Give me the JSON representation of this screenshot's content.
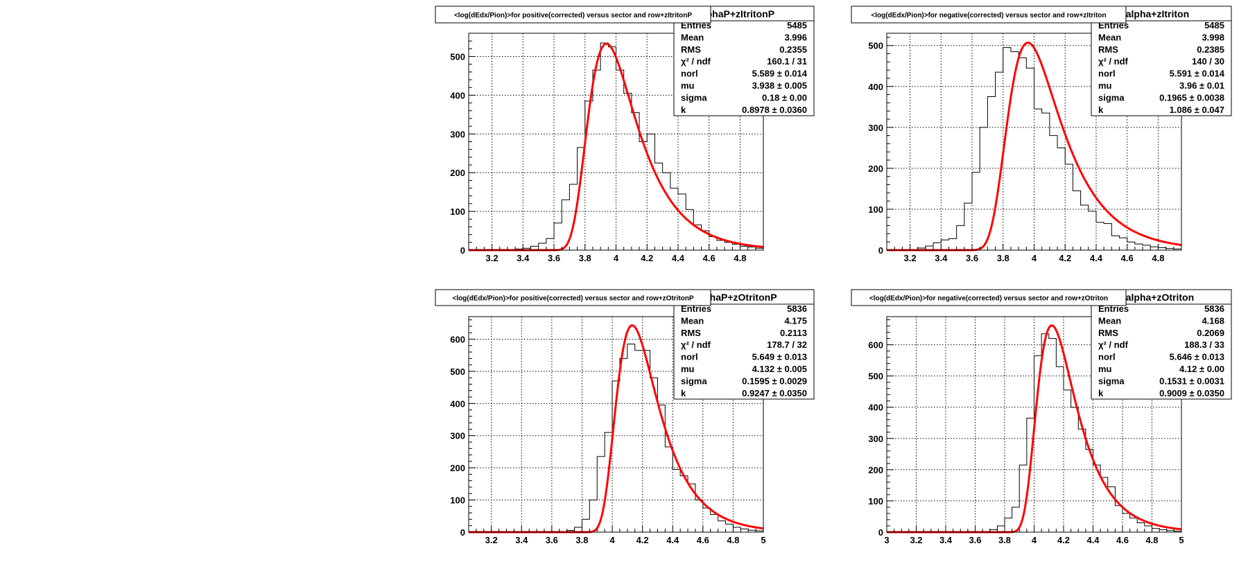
{
  "chart_data": [
    {
      "type": "histogram",
      "title": "<log(dEdx/Pion)>for positive(corrected) versus sector and row+zItritonP",
      "stats_name": "alphaP+zItritonP",
      "xlim": [
        3.05,
        4.95
      ],
      "ylim": [
        0,
        560
      ],
      "xticks": [
        3.2,
        3.4,
        3.6,
        3.8,
        4,
        4.2,
        4.4,
        4.6,
        4.8
      ],
      "yticks": [
        0,
        100,
        200,
        300,
        400,
        500
      ],
      "xtick_labels": [
        "3.2",
        "3.4",
        "3.6",
        "3.8",
        "4",
        "4.2",
        "4.4",
        "4.6",
        "4.8"
      ],
      "ytick_labels": [
        "0",
        "100",
        "200",
        "300",
        "400",
        "500"
      ],
      "bin_edges": [
        3.05,
        3.1,
        3.15,
        3.2,
        3.25,
        3.3,
        3.35,
        3.4,
        3.45,
        3.5,
        3.55,
        3.6,
        3.65,
        3.7,
        3.75,
        3.8,
        3.85,
        3.9,
        3.95,
        4.0,
        4.05,
        4.1,
        4.15,
        4.2,
        4.25,
        4.3,
        4.35,
        4.4,
        4.45,
        4.5,
        4.55,
        4.6,
        4.65,
        4.7,
        4.75,
        4.8,
        4.85,
        4.9,
        4.95
      ],
      "counts": [
        0,
        0,
        0,
        0,
        0,
        1,
        3,
        5,
        10,
        18,
        30,
        70,
        130,
        170,
        265,
        385,
        465,
        535,
        525,
        465,
        405,
        355,
        280,
        300,
        225,
        200,
        160,
        145,
        105,
        65,
        50,
        35,
        25,
        20,
        15,
        10,
        8,
        5
      ],
      "fit": {
        "name": "landau-gaussian",
        "color": "#ff0000",
        "norl": 5.589,
        "mu": 3.938,
        "sigma": 0.18,
        "k": 0.8978,
        "peak": 533
      },
      "stats": [
        {
          "label": "Entries",
          "value": "5485"
        },
        {
          "label": "Mean",
          "value": "3.996"
        },
        {
          "label": "RMS",
          "value": "0.2355"
        },
        {
          "label": "χ² / ndf",
          "value": "160.1 / 31"
        },
        {
          "label": "norl",
          "value": "5.589 ± 0.014"
        },
        {
          "label": "mu",
          "value": "3.938 ± 0.005"
        },
        {
          "label": "sigma",
          "value": "0.18 ± 0.00"
        },
        {
          "label": "k",
          "value": "0.8978 ± 0.0360"
        }
      ]
    },
    {
      "type": "histogram",
      "title": "<log(dEdx/Pion)>for negative(corrected) versus sector and row+zItriton",
      "stats_name": "zIalpha+zItriton",
      "xlim": [
        3.05,
        4.95
      ],
      "ylim": [
        0,
        530
      ],
      "xticks": [
        3.2,
        3.4,
        3.6,
        3.8,
        4,
        4.2,
        4.4,
        4.6,
        4.8
      ],
      "yticks": [
        0,
        100,
        200,
        300,
        400,
        500
      ],
      "xtick_labels": [
        "3.2",
        "3.4",
        "3.6",
        "3.8",
        "4",
        "4.2",
        "4.4",
        "4.6",
        "4.8"
      ],
      "ytick_labels": [
        "0",
        "100",
        "200",
        "300",
        "400",
        "500"
      ],
      "bin_edges": [
        3.05,
        3.1,
        3.15,
        3.2,
        3.25,
        3.3,
        3.35,
        3.4,
        3.45,
        3.5,
        3.55,
        3.6,
        3.65,
        3.7,
        3.75,
        3.8,
        3.85,
        3.9,
        3.95,
        4.0,
        4.05,
        4.1,
        4.15,
        4.2,
        4.25,
        4.3,
        4.35,
        4.4,
        4.45,
        4.5,
        4.55,
        4.6,
        4.65,
        4.7,
        4.75,
        4.8,
        4.85,
        4.9,
        4.95
      ],
      "counts": [
        0,
        0,
        0,
        0,
        5,
        10,
        18,
        25,
        28,
        60,
        115,
        190,
        300,
        375,
        435,
        495,
        485,
        470,
        445,
        345,
        335,
        280,
        250,
        210,
        145,
        110,
        95,
        68,
        65,
        35,
        30,
        20,
        15,
        12,
        8,
        6,
        4,
        3
      ],
      "fit": {
        "name": "landau-gaussian",
        "color": "#ff0000",
        "norl": 5.591,
        "mu": 3.96,
        "sigma": 0.1965,
        "k": 1.086,
        "peak": 507
      },
      "stats": [
        {
          "label": "Entries",
          "value": "5485"
        },
        {
          "label": "Mean",
          "value": "3.998"
        },
        {
          "label": "RMS",
          "value": "0.2385"
        },
        {
          "label": "χ² / ndf",
          "value": "140 / 30"
        },
        {
          "label": "norl",
          "value": "5.591 ± 0.014"
        },
        {
          "label": "mu",
          "value": "3.96 ± 0.01"
        },
        {
          "label": "sigma",
          "value": "0.1965 ± 0.0038"
        },
        {
          "label": "k",
          "value": "1.086 ± 0.047"
        }
      ]
    },
    {
      "type": "histogram",
      "title": "<log(dEdx/Pion)>for positive(corrected) versus sector and row+zOtritonP",
      "stats_name": "alphaP+zOtritonP",
      "xlim": [
        3.05,
        5.0
      ],
      "ylim": [
        0,
        670
      ],
      "xticks": [
        3.2,
        3.4,
        3.6,
        3.8,
        4,
        4.2,
        4.4,
        4.6,
        4.8,
        5
      ],
      "yticks": [
        0,
        100,
        200,
        300,
        400,
        500,
        600
      ],
      "xtick_labels": [
        "3.2",
        "3.4",
        "3.6",
        "3.8",
        "4",
        "4.2",
        "4.4",
        "4.6",
        "4.8",
        "5"
      ],
      "ytick_labels": [
        "0",
        "100",
        "200",
        "300",
        "400",
        "500",
        "600"
      ],
      "bin_edges": [
        3.05,
        3.1,
        3.15,
        3.2,
        3.25,
        3.3,
        3.35,
        3.4,
        3.45,
        3.5,
        3.55,
        3.6,
        3.65,
        3.7,
        3.75,
        3.8,
        3.85,
        3.9,
        3.95,
        4.0,
        4.05,
        4.1,
        4.15,
        4.2,
        4.25,
        4.3,
        4.35,
        4.4,
        4.45,
        4.5,
        4.55,
        4.6,
        4.65,
        4.7,
        4.75,
        4.8,
        4.85,
        4.9,
        4.95,
        5.0
      ],
      "counts": [
        0,
        0,
        0,
        0,
        0,
        0,
        0,
        0,
        0,
        0,
        0,
        0,
        2,
        5,
        15,
        40,
        100,
        235,
        310,
        470,
        540,
        585,
        565,
        565,
        480,
        395,
        265,
        195,
        175,
        150,
        100,
        75,
        55,
        35,
        25,
        15,
        10,
        6,
        4
      ],
      "fit": {
        "name": "landau-gaussian",
        "color": "#ff0000",
        "norl": 5.649,
        "mu": 4.132,
        "sigma": 0.1595,
        "k": 0.9247,
        "peak": 643
      },
      "stats": [
        {
          "label": "Entries",
          "value": "5836"
        },
        {
          "label": "Mean",
          "value": "4.175"
        },
        {
          "label": "RMS",
          "value": "0.2113"
        },
        {
          "label": "χ² / ndf",
          "value": "178.7 / 32"
        },
        {
          "label": "norl",
          "value": "5.649 ± 0.013"
        },
        {
          "label": "mu",
          "value": "4.132 ± 0.005"
        },
        {
          "label": "sigma",
          "value": "0.1595 ± 0.0029"
        },
        {
          "label": "k",
          "value": "0.9247 ± 0.0350"
        }
      ]
    },
    {
      "type": "histogram",
      "title": "<log(dEdx/Pion)>for negative(corrected) versus sector and row+zOtriton",
      "stats_name": "zOalpha+zOtriton",
      "xlim": [
        3.0,
        5.0
      ],
      "ylim": [
        0,
        690
      ],
      "xticks": [
        3,
        3.2,
        3.4,
        3.6,
        3.8,
        4,
        4.2,
        4.4,
        4.6,
        4.8,
        5
      ],
      "yticks": [
        0,
        100,
        200,
        300,
        400,
        500,
        600
      ],
      "xtick_labels": [
        "3",
        "3.2",
        "3.4",
        "3.6",
        "3.8",
        "4",
        "4.2",
        "4.4",
        "4.6",
        "4.8",
        "5"
      ],
      "ytick_labels": [
        "0",
        "100",
        "200",
        "300",
        "400",
        "500",
        "600"
      ],
      "bin_edges": [
        3.0,
        3.05,
        3.1,
        3.15,
        3.2,
        3.25,
        3.3,
        3.35,
        3.4,
        3.45,
        3.5,
        3.55,
        3.6,
        3.65,
        3.7,
        3.75,
        3.8,
        3.85,
        3.9,
        3.95,
        4.0,
        4.05,
        4.1,
        4.15,
        4.2,
        4.25,
        4.3,
        4.35,
        4.4,
        4.45,
        4.5,
        4.55,
        4.6,
        4.65,
        4.7,
        4.75,
        4.8,
        4.85,
        4.9,
        4.95,
        5.0
      ],
      "counts": [
        0,
        0,
        0,
        0,
        0,
        0,
        0,
        0,
        0,
        0,
        0,
        0,
        0,
        2,
        8,
        20,
        45,
        80,
        215,
        365,
        565,
        635,
        620,
        530,
        455,
        400,
        330,
        265,
        215,
        175,
        145,
        85,
        60,
        45,
        30,
        20,
        12,
        8,
        5,
        3
      ],
      "fit": {
        "name": "landau-gaussian",
        "color": "#ff0000",
        "norl": 5.646,
        "mu": 4.12,
        "sigma": 0.1531,
        "k": 0.9009,
        "peak": 662
      },
      "stats": [
        {
          "label": "Entries",
          "value": "5836"
        },
        {
          "label": "Mean",
          "value": "4.168"
        },
        {
          "label": "RMS",
          "value": "0.2069"
        },
        {
          "label": "χ² / ndf",
          "value": "188.3 / 33"
        },
        {
          "label": "norl",
          "value": "5.646 ± 0.013"
        },
        {
          "label": "mu",
          "value": "4.12 ± 0.00"
        },
        {
          "label": "sigma",
          "value": "0.1531 ± 0.0031"
        },
        {
          "label": "k",
          "value": "0.9009 ± 0.0350"
        }
      ]
    }
  ]
}
